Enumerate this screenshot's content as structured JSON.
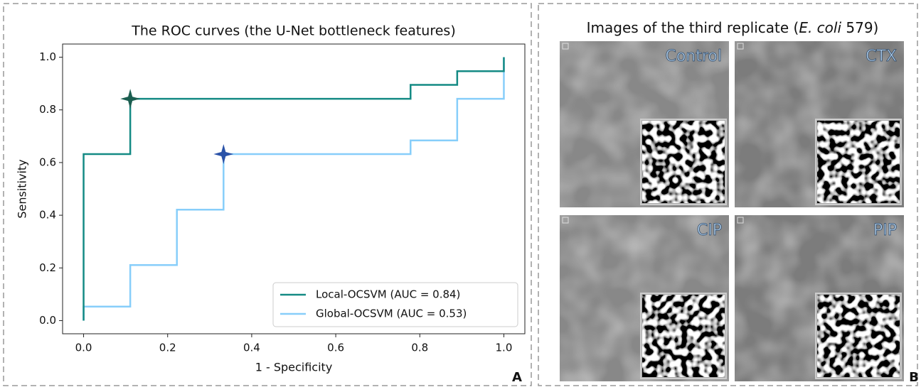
{
  "chart_data": {
    "type": "line",
    "step": true,
    "title": "The ROC curves (the U-Net bottleneck features)",
    "x_label": "1 - Specificity",
    "y_label": "Sensitivity",
    "xlim": [
      -0.05,
      1.05
    ],
    "ylim": [
      -0.05,
      1.05
    ],
    "xticks": [
      {
        "value": 0,
        "label": "0.0"
      },
      0.2,
      0.4,
      0.6,
      0.8,
      {
        "value": 1,
        "label": "1.0"
      }
    ],
    "yticks": [
      {
        "value": 0,
        "label": "0.0"
      },
      0.2,
      0.4,
      0.6,
      0.8,
      {
        "value": 1,
        "label": "1.0"
      }
    ],
    "legend": "lower right",
    "series": [
      {
        "name": "Local-OCSVM (AUC = 0.84)",
        "color": "#148a84",
        "x": [
          0,
          0,
          0.111,
          0.111,
          0.778,
          0.778,
          0.889,
          0.889,
          1,
          1
        ],
        "values": [
          0,
          0.632,
          0.632,
          0.842,
          0.842,
          0.895,
          0.895,
          0.947,
          0.947,
          1
        ]
      },
      {
        "name": "Global-OCSVM (AUC = 0.53)",
        "color": "#87cefa",
        "x": [
          0,
          0,
          0.111,
          0.111,
          0.222,
          0.222,
          0.333,
          0.333,
          0.778,
          0.778,
          0.889,
          0.889,
          1,
          1
        ],
        "values": [
          0,
          0.053,
          0.053,
          0.211,
          0.211,
          0.421,
          0.421,
          0.632,
          0.632,
          0.684,
          0.684,
          0.842,
          0.842,
          1
        ]
      }
    ],
    "markers": [
      {
        "x": 0.111,
        "y": 0.842,
        "color": "#1b5e50"
      },
      {
        "x": 0.333,
        "y": 0.632,
        "color": "#2a52a8"
      }
    ]
  },
  "panel_a_label": "A",
  "panel_b": {
    "label": "B",
    "title_parts": [
      "Images of the third replicate (",
      "E. coli",
      " 579)"
    ],
    "images": [
      "Control",
      "CTX",
      "CIP",
      "PIP"
    ]
  }
}
